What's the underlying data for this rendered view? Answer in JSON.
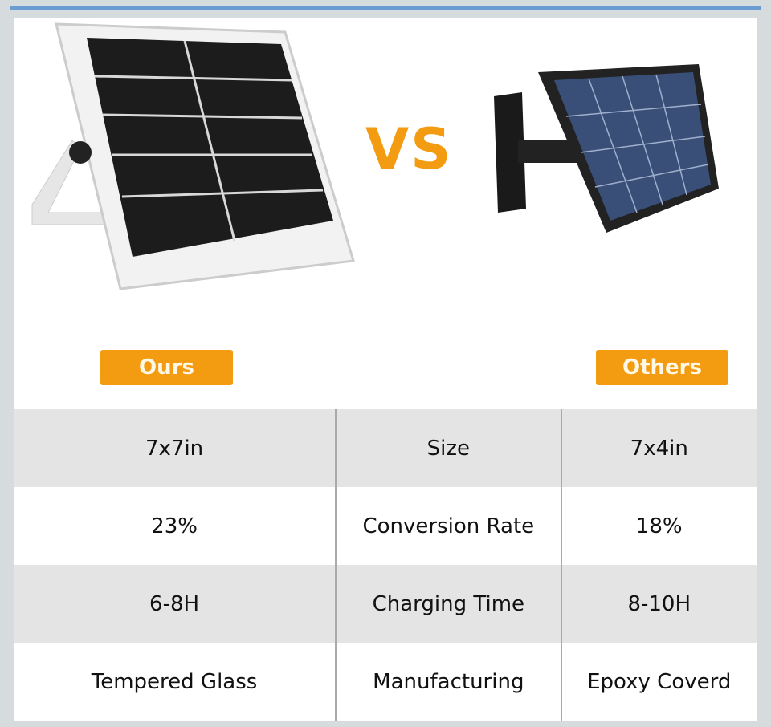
{
  "heading": {
    "vs": "VS"
  },
  "badges": {
    "ours": "Ours",
    "others": "Others"
  },
  "colors": {
    "accent": "#f39c12",
    "row_shade": "#e4e4e4"
  },
  "rows": [
    {
      "ours": "7x7in",
      "feature": "Size",
      "others": "7x4in"
    },
    {
      "ours": "23%",
      "feature": "Conversion Rate",
      "others": "18%"
    },
    {
      "ours": "6-8H",
      "feature": "Charging Time",
      "others": "8-10H"
    },
    {
      "ours": "Tempered Glass",
      "feature": "Manufacturing",
      "others": "Epoxy Coverd"
    }
  ]
}
